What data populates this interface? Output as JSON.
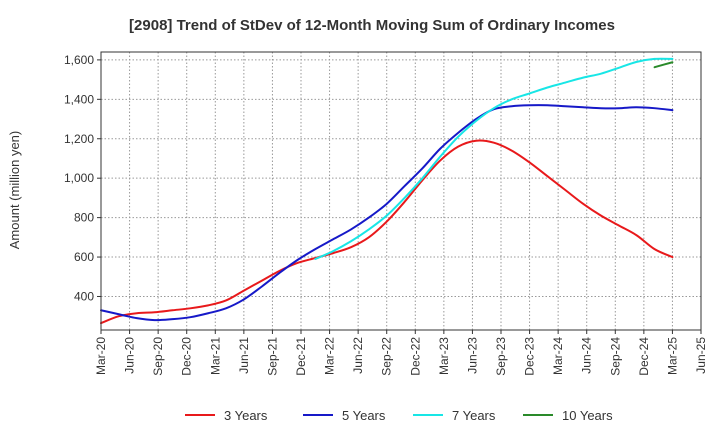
{
  "chart_data": {
    "type": "line",
    "title": "[2908]  Trend of StDev of 12-Month Moving Sum of Ordinary Incomes",
    "xlabel": "",
    "ylabel": "Amount (million yen)",
    "ylim": [
      230,
      1640
    ],
    "yticks": [
      400,
      600,
      800,
      1000,
      1200,
      1400,
      1600
    ],
    "ytick_labels": [
      "400",
      "600",
      "800",
      "1,000",
      "1,200",
      "1,400",
      "1,600"
    ],
    "xticks": [
      "Mar-20",
      "Jun-20",
      "Sep-20",
      "Dec-20",
      "Mar-21",
      "Jun-21",
      "Sep-21",
      "Dec-21",
      "Mar-22",
      "Jun-22",
      "Sep-22",
      "Dec-22",
      "Mar-23",
      "Jun-23",
      "Sep-23",
      "Dec-23",
      "Mar-24",
      "Jun-24",
      "Sep-24",
      "Dec-24",
      "Mar-25",
      "Jun-25"
    ],
    "grid": true,
    "legend_position": "bottom",
    "series": [
      {
        "name": "3 Years",
        "color": "#e8191b",
        "start_index": 0,
        "values": [
          265,
          300,
          315,
          320,
          330,
          340,
          355,
          380,
          430,
          480,
          530,
          570,
          595,
          620,
          650,
          700,
          780,
          880,
          990,
          1090,
          1160,
          1190,
          1180,
          1140,
          1080,
          1010,
          940,
          870,
          810,
          760,
          710,
          640,
          600
        ]
      },
      {
        "name": "5 Years",
        "color": "#1619c8",
        "start_index": 0,
        "values": [
          330,
          310,
          290,
          280,
          285,
          295,
          315,
          340,
          385,
          450,
          520,
          585,
          640,
          690,
          740,
          800,
          870,
          960,
          1050,
          1150,
          1230,
          1300,
          1350,
          1365,
          1370,
          1370,
          1365,
          1360,
          1355,
          1355,
          1360,
          1355,
          1345
        ]
      },
      {
        "name": "7 Years",
        "color": "#18e6e6",
        "start_index": 12,
        "values": [
          590,
          630,
          680,
          740,
          810,
          900,
          1000,
          1110,
          1210,
          1290,
          1355,
          1400,
          1430,
          1460,
          1485,
          1510,
          1530,
          1560,
          1590,
          1605,
          1605
        ]
      },
      {
        "name": "10 Years",
        "color": "#2a8a2a",
        "start_index": 31,
        "values": [
          1563,
          1588
        ]
      }
    ]
  }
}
